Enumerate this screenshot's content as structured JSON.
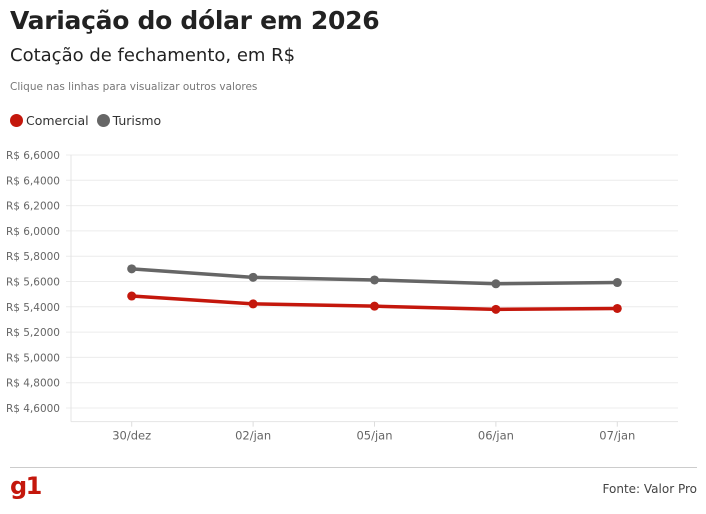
{
  "header": {
    "title": "Variação do dólar em 2026",
    "subtitle": "Cotação de fechamento, em R$",
    "hint": "Clique nas linhas para visualizar outros valores"
  },
  "footer": {
    "logo": "g1",
    "source": "Fonte: Valor Pro"
  },
  "colors": {
    "comercial": "#c4170c",
    "turismo": "#666666",
    "grid": "#ececec",
    "brand": "#c4170c"
  },
  "chart_data": {
    "type": "line",
    "title": "Variação do dólar em 2026",
    "subtitle": "Cotação de fechamento, em R$",
    "xlabel": "",
    "ylabel": "",
    "categories": [
      "30/dez",
      "02/jan",
      "05/jan",
      "06/jan",
      "07/jan"
    ],
    "ylim": [
      4.5,
      6.6
    ],
    "yticks": [
      6.6,
      6.4,
      6.2,
      6.0,
      5.8,
      5.6,
      5.4,
      5.2,
      5.0,
      4.8,
      4.6
    ],
    "ytick_labels": [
      "R$ 6,6000",
      "R$ 6,4000",
      "R$ 6,2000",
      "R$ 6,0000",
      "R$ 5,8000",
      "R$ 5,6000",
      "R$ 5,4000",
      "R$ 5,2000",
      "R$ 5,0000",
      "R$ 4,8000",
      "R$ 4,6000"
    ],
    "grid": true,
    "legend_position": "top-left",
    "series": [
      {
        "name": "Comercial",
        "color": "#c4170c",
        "values": [
          5.485,
          5.423,
          5.405,
          5.38,
          5.387
        ]
      },
      {
        "name": "Turismo",
        "color": "#666666",
        "values": [
          5.7,
          5.633,
          5.612,
          5.582,
          5.592
        ]
      }
    ]
  }
}
